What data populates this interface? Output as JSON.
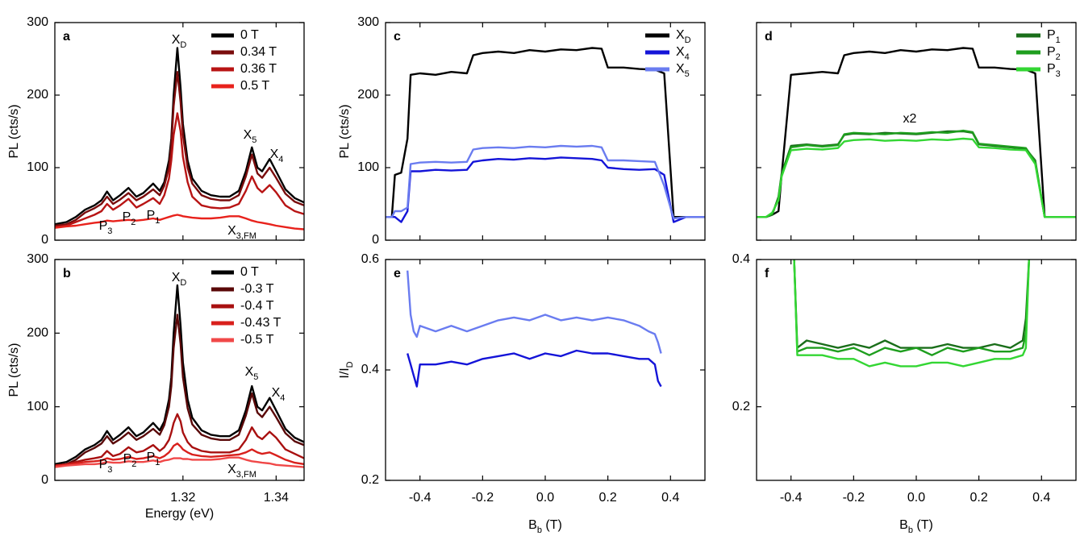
{
  "chart_data": [
    {
      "type": "line",
      "panel": "a",
      "ylabel": [
        "PL (cts/s)"
      ],
      "ylim": [
        0,
        300
      ],
      "yticks": [
        0,
        100,
        200,
        300
      ],
      "ytick_labels": true,
      "xlim": [
        1.2925,
        1.346
      ],
      "xticks": [
        1.32,
        1.34
      ],
      "xtick_labels": false,
      "legend": "upper right",
      "x": [
        1.2925,
        1.295,
        1.297,
        1.299,
        1.301,
        1.3025,
        1.3037,
        1.305,
        1.3065,
        1.3083,
        1.31,
        1.3115,
        1.3136,
        1.315,
        1.316,
        1.317,
        1.3175,
        1.318,
        1.3188,
        1.3195,
        1.32,
        1.321,
        1.322,
        1.324,
        1.326,
        1.328,
        1.33,
        1.332,
        1.3335,
        1.3348,
        1.336,
        1.337,
        1.3386,
        1.34,
        1.342,
        1.344,
        1.346
      ],
      "series": [
        {
          "name": [
            "0 T"
          ],
          "color": "#000000",
          "values": [
            22,
            25,
            32,
            42,
            48,
            55,
            67,
            55,
            62,
            72,
            60,
            65,
            78,
            68,
            80,
            110,
            140,
            200,
            265,
            210,
            160,
            110,
            85,
            68,
            62,
            60,
            60,
            68,
            95,
            128,
            100,
            95,
            112,
            95,
            70,
            58,
            52
          ]
        },
        {
          "name": [
            "0.34 T"
          ],
          "color": "#7a0c0c",
          "values": [
            20,
            22,
            28,
            38,
            44,
            50,
            60,
            50,
            56,
            65,
            55,
            60,
            70,
            62,
            75,
            100,
            130,
            185,
            232,
            190,
            145,
            100,
            78,
            62,
            57,
            55,
            55,
            62,
            88,
            118,
            92,
            86,
            100,
            86,
            64,
            53,
            48
          ]
        },
        {
          "name": [
            "0.36 T"
          ],
          "color": "#b81414",
          "values": [
            18,
            20,
            25,
            30,
            35,
            40,
            50,
            42,
            48,
            57,
            45,
            50,
            58,
            50,
            62,
            85,
            110,
            145,
            175,
            150,
            115,
            80,
            60,
            48,
            45,
            44,
            45,
            50,
            68,
            88,
            72,
            66,
            76,
            66,
            48,
            40,
            36
          ]
        },
        {
          "name": [
            "0.5 T"
          ],
          "color": "#e8221c",
          "values": [
            17,
            19,
            20,
            22,
            24,
            25,
            27,
            26,
            27,
            28,
            27,
            28,
            30,
            28,
            30,
            32,
            33,
            34,
            35,
            34,
            33,
            32,
            31,
            30,
            30,
            31,
            33,
            33,
            30,
            27,
            25,
            24,
            22,
            20,
            18,
            16,
            15
          ]
        }
      ],
      "annotations": [
        [
          "P",
          "3"
        ],
        [
          "P",
          "2"
        ],
        [
          "P",
          "1"
        ],
        [
          "X",
          "D"
        ],
        [
          "X",
          "5"
        ],
        [
          "X",
          "4"
        ],
        [
          "X",
          "3,FM"
        ]
      ]
    },
    {
      "type": "line",
      "panel": "b",
      "ylabel": [
        "PL (cts/s)"
      ],
      "xlabel": [
        "Energy (eV)"
      ],
      "ylim": [
        0,
        300
      ],
      "yticks": [
        0,
        100,
        200,
        300
      ],
      "ytick_labels": true,
      "xlim": [
        1.2925,
        1.346
      ],
      "xticks": [
        1.32,
        1.34
      ],
      "xtick_labels": true,
      "legend": "upper right",
      "x": [
        1.2925,
        1.295,
        1.297,
        1.299,
        1.301,
        1.3025,
        1.3037,
        1.305,
        1.3065,
        1.3083,
        1.31,
        1.3115,
        1.3136,
        1.315,
        1.316,
        1.317,
        1.3175,
        1.318,
        1.3188,
        1.3195,
        1.32,
        1.321,
        1.322,
        1.324,
        1.326,
        1.328,
        1.33,
        1.332,
        1.3335,
        1.3348,
        1.336,
        1.337,
        1.3386,
        1.34,
        1.342,
        1.344,
        1.346
      ],
      "series": [
        {
          "name": [
            "0 T"
          ],
          "color": "#000000",
          "values": [
            22,
            25,
            32,
            42,
            48,
            55,
            67,
            55,
            62,
            72,
            60,
            65,
            78,
            68,
            80,
            110,
            140,
            200,
            265,
            210,
            160,
            110,
            85,
            68,
            62,
            60,
            60,
            68,
            95,
            128,
            100,
            95,
            112,
            95,
            70,
            58,
            52
          ]
        },
        {
          "name": [
            "-0.3 T"
          ],
          "color": "#5a0808",
          "values": [
            20,
            22,
            28,
            38,
            44,
            50,
            60,
            50,
            56,
            65,
            55,
            60,
            70,
            62,
            75,
            100,
            128,
            180,
            225,
            185,
            140,
            98,
            76,
            62,
            57,
            55,
            55,
            62,
            88,
            118,
            92,
            86,
            100,
            86,
            64,
            53,
            48
          ]
        },
        {
          "name": [
            "-0.4 T"
          ],
          "color": "#a81010",
          "values": [
            20,
            22,
            25,
            28,
            30,
            32,
            40,
            33,
            36,
            45,
            38,
            40,
            48,
            40,
            45,
            55,
            65,
            78,
            90,
            80,
            65,
            52,
            45,
            40,
            38,
            38,
            38,
            42,
            55,
            72,
            60,
            56,
            66,
            58,
            42,
            36,
            30
          ]
        },
        {
          "name": [
            "-0.43 T"
          ],
          "color": "#d8201c",
          "values": [
            20,
            21,
            23,
            25,
            26,
            27,
            30,
            28,
            29,
            32,
            29,
            30,
            33,
            30,
            33,
            38,
            42,
            47,
            50,
            46,
            42,
            38,
            35,
            33,
            32,
            33,
            34,
            35,
            38,
            42,
            38,
            36,
            38,
            34,
            28,
            24,
            22
          ]
        },
        {
          "name": [
            "-0.5 T"
          ],
          "color": "#f04848",
          "values": [
            18,
            20,
            21,
            22,
            22,
            23,
            25,
            24,
            24,
            26,
            25,
            25,
            27,
            25,
            27,
            28,
            29,
            30,
            30,
            30,
            29,
            29,
            28,
            28,
            28,
            29,
            31,
            31,
            28,
            26,
            25,
            24,
            23,
            21,
            20,
            19,
            18
          ]
        }
      ],
      "annotations": [
        [
          "P",
          "3"
        ],
        [
          "P",
          "2"
        ],
        [
          "P",
          "1"
        ],
        [
          "X",
          "D"
        ],
        [
          "X",
          "5"
        ],
        [
          "X",
          "4"
        ],
        [
          "X",
          "3,FM"
        ]
      ]
    },
    {
      "type": "line",
      "panel": "c",
      "ylabel": [
        "PL (cts/s)"
      ],
      "ylim": [
        0,
        300
      ],
      "yticks": [
        0,
        100,
        200,
        300
      ],
      "ytick_labels": true,
      "xlim": [
        -0.51,
        0.51
      ],
      "xticks": [
        -0.4,
        -0.2,
        {
          "value": 0,
          "label": "0.0"
        },
        0.2,
        0.4
      ],
      "xtick_labels": false,
      "legend": "upper right",
      "x": [
        -0.51,
        -0.49,
        -0.48,
        -0.46,
        -0.44,
        -0.43,
        -0.4,
        -0.35,
        -0.3,
        -0.25,
        -0.23,
        -0.2,
        -0.15,
        -0.1,
        -0.05,
        0,
        0.05,
        0.1,
        0.15,
        0.18,
        0.2,
        0.25,
        0.3,
        0.35,
        0.38,
        0.41,
        0.45,
        0.51
      ],
      "series": [
        {
          "name": [
            "X",
            "D"
          ],
          "color": "#000000",
          "values": [
            32,
            32,
            90,
            93,
            140,
            228,
            230,
            228,
            232,
            230,
            255,
            258,
            260,
            258,
            262,
            260,
            263,
            262,
            265,
            264,
            238,
            238,
            236,
            235,
            230,
            32,
            32,
            32
          ]
        },
        {
          "name": [
            "X",
            "4"
          ],
          "color": "#1414d8",
          "values": [
            32,
            32,
            32,
            25,
            40,
            95,
            95,
            97,
            96,
            97,
            108,
            110,
            112,
            111,
            113,
            112,
            114,
            113,
            112,
            110,
            100,
            98,
            97,
            98,
            90,
            25,
            32,
            32
          ]
        },
        {
          "name": [
            "X",
            "5"
          ],
          "color": "#6a7cf0",
          "values": [
            32,
            32,
            40,
            40,
            45,
            105,
            107,
            108,
            107,
            108,
            125,
            127,
            128,
            127,
            129,
            128,
            130,
            129,
            130,
            128,
            110,
            110,
            109,
            108,
            75,
            30,
            32,
            32
          ]
        }
      ]
    },
    {
      "type": "line",
      "panel": "d",
      "ylim": [
        0,
        300
      ],
      "yticks": [
        0,
        100,
        200,
        300
      ],
      "ytick_labels": false,
      "xlim": [
        -0.51,
        0.51
      ],
      "xticks": [
        -0.4,
        -0.2,
        {
          "value": 0,
          "label": "0.0"
        },
        0.2,
        0.4
      ],
      "xtick_labels": false,
      "legend": "upper right",
      "x": [
        -0.51,
        -0.49,
        -0.48,
        -0.46,
        -0.44,
        -0.43,
        -0.4,
        -0.35,
        -0.3,
        -0.25,
        -0.23,
        -0.2,
        -0.15,
        -0.1,
        -0.05,
        0,
        0.05,
        0.1,
        0.15,
        0.18,
        0.2,
        0.25,
        0.3,
        0.35,
        0.38,
        0.41,
        0.45,
        0.51
      ],
      "series": [
        {
          "color": "#000000",
          "values": [
            32,
            32,
            32,
            35,
            40,
            90,
            228,
            230,
            232,
            230,
            255,
            258,
            260,
            258,
            262,
            260,
            263,
            262,
            265,
            264,
            238,
            238,
            236,
            235,
            230,
            32,
            32,
            32
          ]
        },
        {
          "name": [
            "P",
            "1"
          ],
          "color": "#1a6e1a",
          "values": [
            32,
            32,
            32,
            35,
            60,
            92,
            130,
            132,
            130,
            132,
            145,
            147,
            146,
            148,
            147,
            146,
            148,
            150,
            150,
            148,
            132,
            130,
            128,
            126,
            110,
            32,
            32,
            32
          ]
        },
        {
          "name": [
            "P",
            "2"
          ],
          "color": "#1e9e1e",
          "values": [
            32,
            32,
            32,
            36,
            58,
            90,
            128,
            131,
            129,
            131,
            146,
            148,
            147,
            146,
            148,
            147,
            149,
            148,
            151,
            149,
            133,
            131,
            129,
            127,
            108,
            32,
            32,
            32
          ]
        },
        {
          "name": [
            "P",
            "3"
          ],
          "color": "#33d633",
          "values": [
            32,
            32,
            32,
            38,
            55,
            88,
            124,
            126,
            125,
            127,
            136,
            138,
            139,
            137,
            138,
            137,
            139,
            138,
            140,
            139,
            128,
            127,
            125,
            124,
            105,
            32,
            32,
            32
          ]
        }
      ],
      "annotations": [
        [
          "x2"
        ]
      ],
      "annotation_color": "#1a7a1a"
    },
    {
      "type": "line",
      "panel": "e",
      "ylabel": [
        "I/I",
        "D"
      ],
      "xlabel": [
        "B",
        "b",
        " (T)"
      ],
      "ylim": [
        0.2,
        0.6
      ],
      "yticks": [
        0.2,
        0.4,
        0.6
      ],
      "ytick_labels": true,
      "xlim": [
        -0.51,
        0.51
      ],
      "xticks": [
        -0.4,
        -0.2,
        {
          "value": 0,
          "label": "0.0"
        },
        0.2,
        0.4
      ],
      "xtick_labels": true,
      "x": [
        -0.44,
        -0.43,
        -0.42,
        -0.41,
        -0.4,
        -0.35,
        -0.3,
        -0.25,
        -0.2,
        -0.15,
        -0.1,
        -0.05,
        0,
        0.05,
        0.1,
        0.15,
        0.2,
        0.25,
        0.3,
        0.33,
        0.35,
        0.36,
        0.37
      ],
      "series": [
        {
          "color": "#1414d8",
          "values": [
            0.43,
            0.41,
            0.39,
            0.37,
            0.41,
            0.41,
            0.415,
            0.41,
            0.42,
            0.425,
            0.43,
            0.42,
            0.43,
            0.425,
            0.435,
            0.43,
            0.43,
            0.425,
            0.42,
            0.42,
            0.41,
            0.38,
            0.37
          ]
        },
        {
          "color": "#6a7cf0",
          "values": [
            0.58,
            0.5,
            0.47,
            0.46,
            0.48,
            0.47,
            0.48,
            0.47,
            0.48,
            0.49,
            0.495,
            0.49,
            0.5,
            0.49,
            0.495,
            0.49,
            0.495,
            0.49,
            0.48,
            0.47,
            0.465,
            0.45,
            0.43
          ]
        }
      ]
    },
    {
      "type": "line",
      "panel": "f",
      "xlabel": [
        "B",
        "b",
        " (T)"
      ],
      "ylim": [
        0.1,
        0.4
      ],
      "yticks": [
        0.2,
        0.4
      ],
      "ytick_labels": true,
      "xlim": [
        -0.51,
        0.51
      ],
      "xticks": [
        -0.4,
        -0.2,
        {
          "value": 0,
          "label": "0.0"
        },
        0.2,
        0.4
      ],
      "xtick_labels": true,
      "x": [
        -0.39,
        -0.38,
        -0.35,
        -0.3,
        -0.25,
        -0.2,
        -0.15,
        -0.1,
        -0.05,
        0,
        0.05,
        0.1,
        0.15,
        0.2,
        0.25,
        0.3,
        0.34,
        0.35,
        0.36
      ],
      "series": [
        {
          "color": "#1a6e1a",
          "values": [
            0.4,
            0.28,
            0.29,
            0.285,
            0.28,
            0.285,
            0.28,
            0.29,
            0.28,
            0.28,
            0.28,
            0.285,
            0.28,
            0.28,
            0.285,
            0.28,
            0.29,
            0.32,
            0.4
          ]
        },
        {
          "color": "#1e9e1e",
          "values": [
            0.4,
            0.275,
            0.28,
            0.28,
            0.275,
            0.28,
            0.27,
            0.28,
            0.275,
            0.28,
            0.27,
            0.28,
            0.275,
            0.28,
            0.275,
            0.275,
            0.28,
            0.3,
            0.4
          ]
        },
        {
          "color": "#33d633",
          "values": [
            0.4,
            0.27,
            0.27,
            0.27,
            0.265,
            0.265,
            0.255,
            0.26,
            0.255,
            0.255,
            0.26,
            0.26,
            0.255,
            0.26,
            0.265,
            0.265,
            0.27,
            0.28,
            0.4
          ]
        }
      ]
    }
  ]
}
